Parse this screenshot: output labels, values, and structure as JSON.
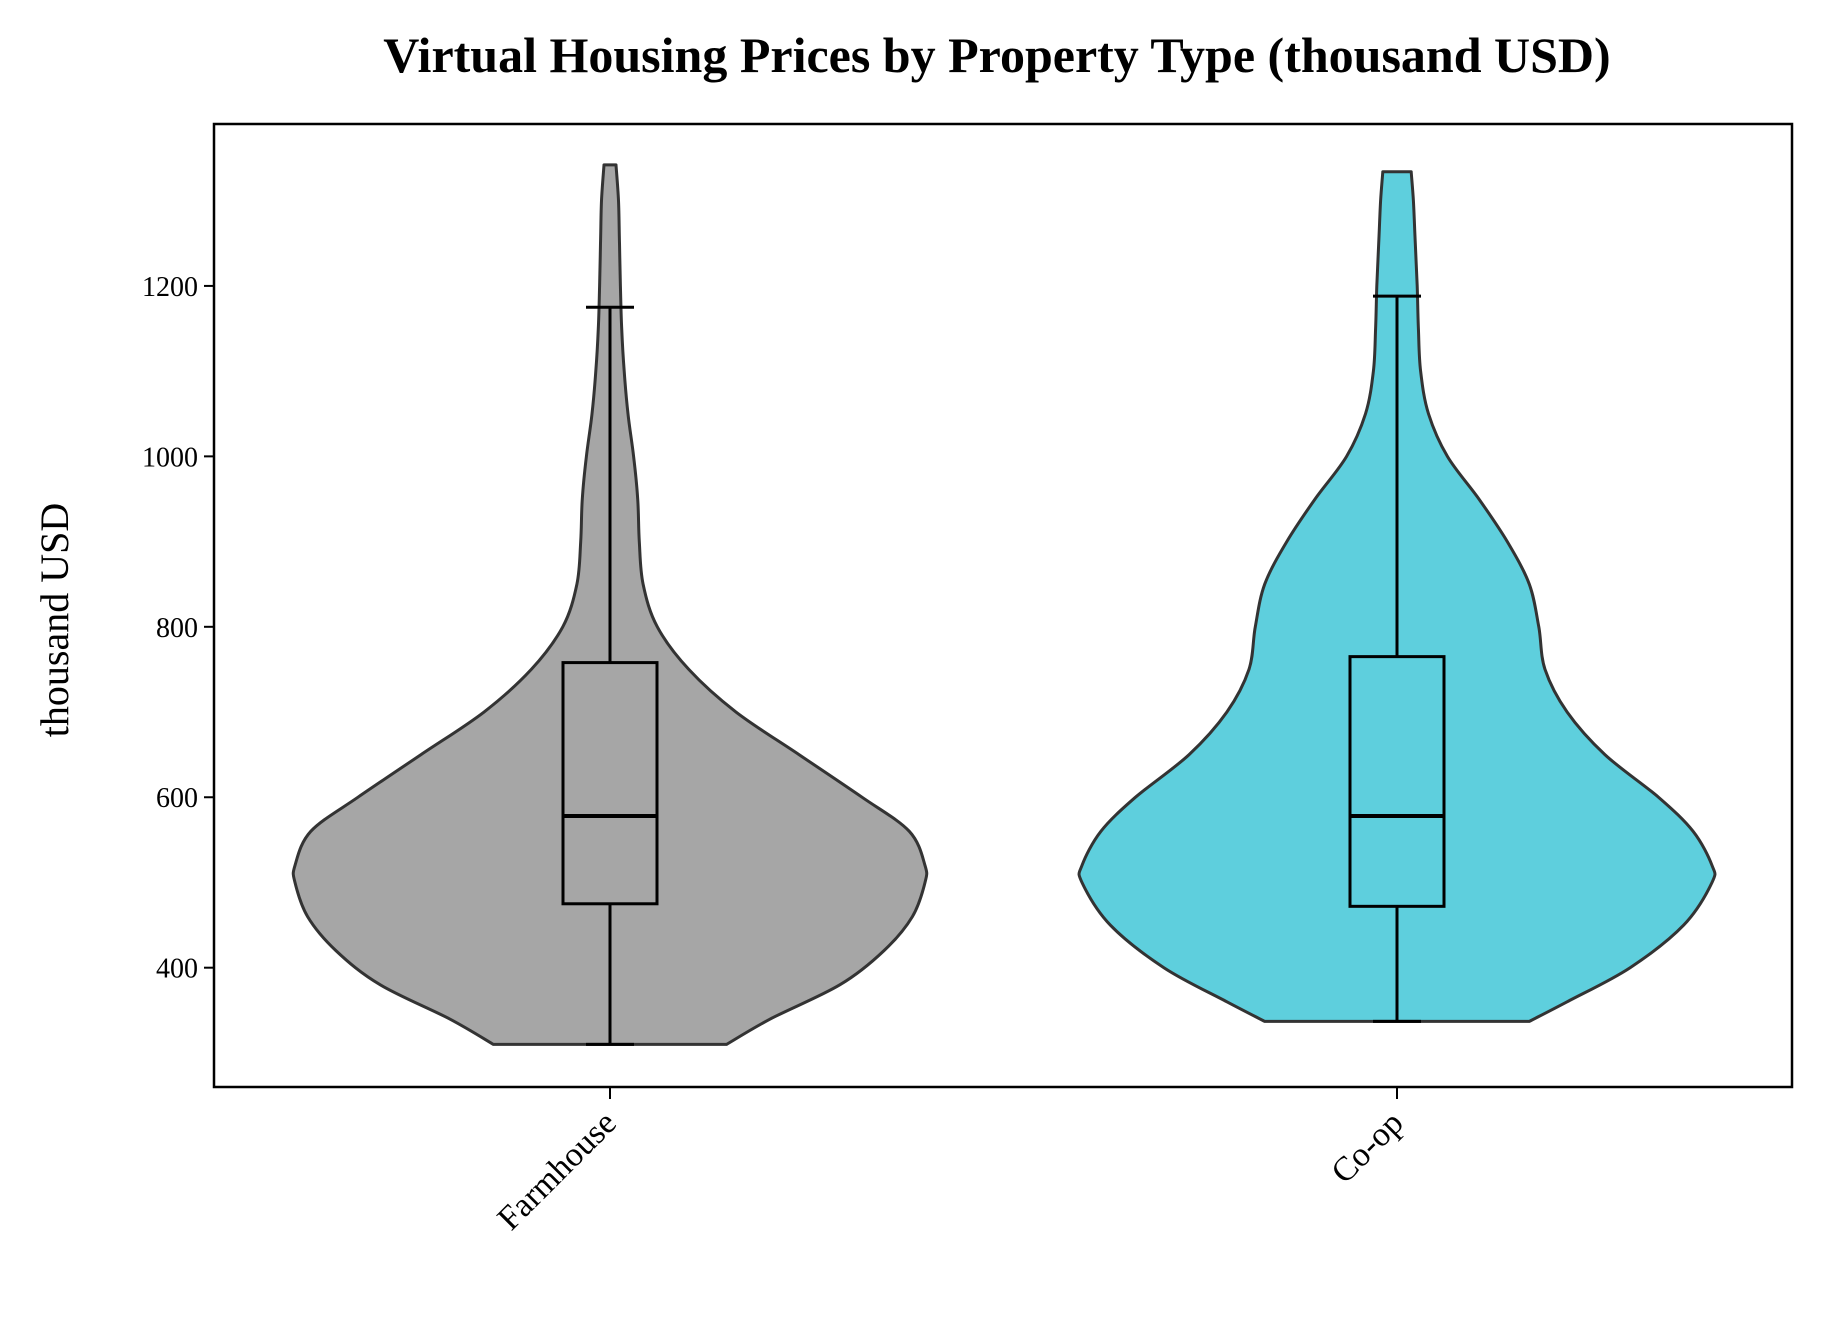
{
  "chart_data": {
    "type": "violin",
    "title": "Virtual Housing Prices by Property Type (thousand USD)",
    "xlabel": "",
    "ylabel": "thousand USD",
    "ylim": [
      260,
      1390
    ],
    "yticks": [
      400,
      600,
      800,
      1000,
      1200
    ],
    "ytick_labels": [
      "400",
      "600",
      "800",
      "1000",
      "1200"
    ],
    "grid": false,
    "legend": "none",
    "categories": [
      "Farmhouse",
      "Co-op"
    ],
    "series": [
      {
        "category": "Farmhouse",
        "color": "#a6a6a6",
        "min": 310,
        "q1": 475,
        "median": 578,
        "q3": 758,
        "whisker_high": 1175,
        "max": 1342,
        "density": [
          [
            310,
            0.37
          ],
          [
            340,
            0.51
          ],
          [
            380,
            0.73
          ],
          [
            420,
            0.87
          ],
          [
            460,
            0.96
          ],
          [
            500,
            1.0
          ],
          [
            520,
            1.0
          ],
          [
            560,
            0.95
          ],
          [
            600,
            0.8
          ],
          [
            650,
            0.6
          ],
          [
            700,
            0.4
          ],
          [
            750,
            0.25
          ],
          [
            800,
            0.15
          ],
          [
            850,
            0.105
          ],
          [
            900,
            0.093
          ],
          [
            950,
            0.088
          ],
          [
            1000,
            0.075
          ],
          [
            1050,
            0.057
          ],
          [
            1100,
            0.045
          ],
          [
            1150,
            0.037
          ],
          [
            1200,
            0.033
          ],
          [
            1250,
            0.03
          ],
          [
            1300,
            0.027
          ],
          [
            1342,
            0.019
          ]
        ]
      },
      {
        "category": "Co-op",
        "color": "#5ecfdd",
        "min": 337,
        "q1": 472,
        "median": 578,
        "q3": 765,
        "whisker_high": 1188,
        "max": 1334,
        "density": [
          [
            337,
            0.42
          ],
          [
            360,
            0.54
          ],
          [
            400,
            0.74
          ],
          [
            450,
            0.91
          ],
          [
            500,
            1.0
          ],
          [
            520,
            1.0
          ],
          [
            560,
            0.94
          ],
          [
            600,
            0.83
          ],
          [
            650,
            0.66
          ],
          [
            700,
            0.54
          ],
          [
            750,
            0.47
          ],
          [
            800,
            0.45
          ],
          [
            850,
            0.42
          ],
          [
            900,
            0.35
          ],
          [
            950,
            0.26
          ],
          [
            1000,
            0.16
          ],
          [
            1050,
            0.1
          ],
          [
            1100,
            0.075
          ],
          [
            1150,
            0.068
          ],
          [
            1200,
            0.064
          ],
          [
            1250,
            0.058
          ],
          [
            1300,
            0.052
          ],
          [
            1334,
            0.045
          ]
        ]
      }
    ]
  }
}
